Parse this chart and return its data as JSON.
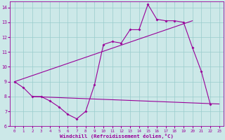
{
  "bg_color": "#cce8e8",
  "line_color": "#990099",
  "grid_color": "#99cccc",
  "xlabel": "Windchill (Refroidissement éolien,°C)",
  "xlim": [
    -0.5,
    23.5
  ],
  "ylim": [
    6,
    14.4
  ],
  "yticks": [
    6,
    7,
    8,
    9,
    10,
    11,
    12,
    13,
    14
  ],
  "xticks": [
    0,
    1,
    2,
    3,
    4,
    5,
    6,
    7,
    8,
    9,
    10,
    11,
    12,
    13,
    14,
    15,
    16,
    17,
    18,
    19,
    20,
    21,
    22,
    23
  ],
  "line1_x": [
    0,
    1,
    2,
    3,
    4,
    5,
    6,
    7,
    8,
    9,
    10,
    11,
    12,
    13,
    14,
    15,
    16,
    17,
    18,
    19,
    20,
    21,
    22
  ],
  "line1_y": [
    9.0,
    8.6,
    8.0,
    8.0,
    7.7,
    7.3,
    6.8,
    6.5,
    7.0,
    8.8,
    11.5,
    11.7,
    11.6,
    12.5,
    12.5,
    14.2,
    13.2,
    13.1,
    13.1,
    13.0,
    11.3,
    9.7,
    7.5
  ],
  "line2_x": [
    0,
    20
  ],
  "line2_y": [
    9.0,
    13.1
  ],
  "line3_x": [
    2,
    23
  ],
  "line3_y": [
    8.0,
    7.5
  ],
  "figsize": [
    3.2,
    2.0
  ],
  "dpi": 100
}
